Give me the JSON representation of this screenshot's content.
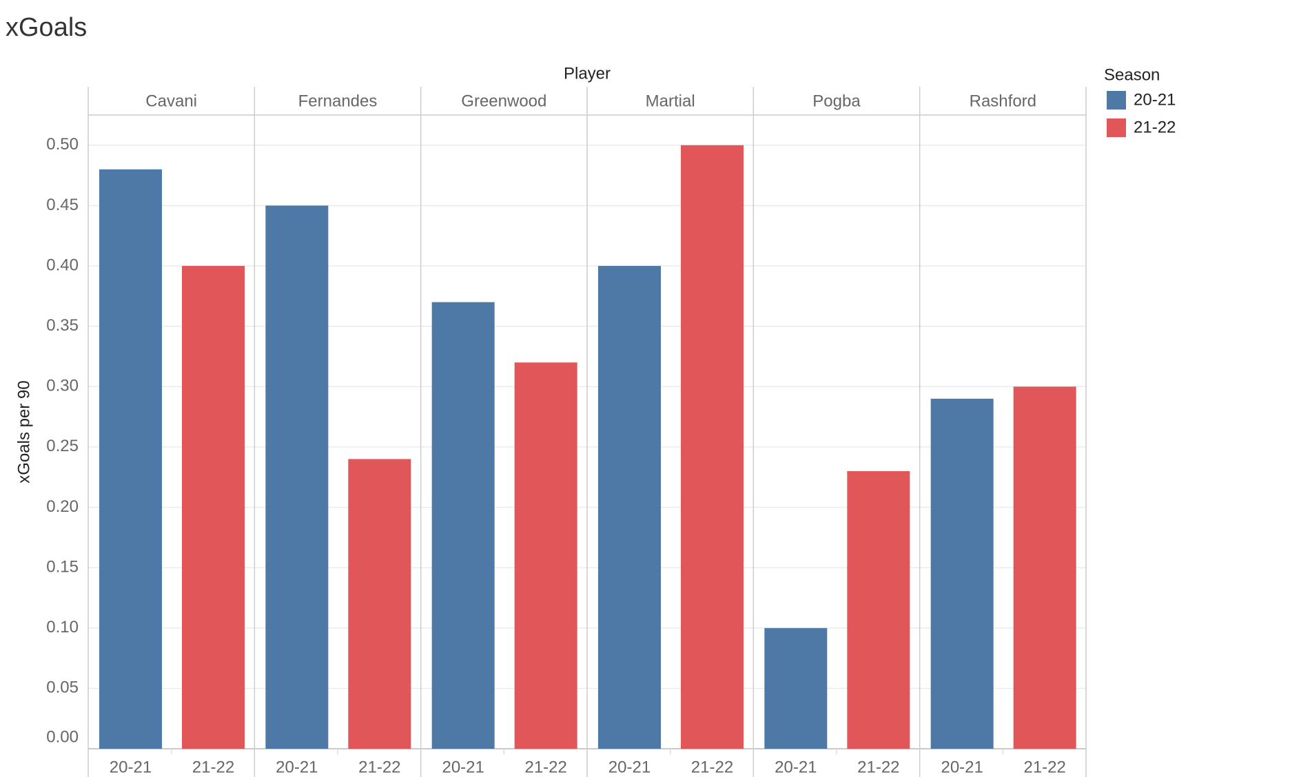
{
  "chart_data": {
    "type": "bar",
    "title": "xGoals",
    "x_label": "Player",
    "y_label": "xGoals per 90",
    "legend_title": "Season",
    "categories": [
      "Cavani",
      "Fernandes",
      "Greenwood",
      "Martial",
      "Pogba",
      "Rashford"
    ],
    "series": [
      {
        "name": "20-21",
        "color": "#4e79a7",
        "values": [
          0.48,
          0.45,
          0.37,
          0.4,
          0.1,
          0.29
        ]
      },
      {
        "name": "21-22",
        "color": "#e15759",
        "values": [
          0.4,
          0.24,
          0.32,
          0.5,
          0.23,
          0.3
        ]
      }
    ],
    "ylim": [
      0,
      0.525
    ],
    "yticks": [
      {
        "value": 0,
        "label": "0.00"
      },
      {
        "value": 0.05,
        "label": "0.05"
      },
      {
        "value": 0.1,
        "label": "0.10"
      },
      {
        "value": 0.15,
        "label": "0.15"
      },
      {
        "value": 0.2,
        "label": "0.20"
      },
      {
        "value": 0.25,
        "label": "0.25"
      },
      {
        "value": 0.3,
        "label": "0.30"
      },
      {
        "value": 0.35,
        "label": "0.35"
      },
      {
        "value": 0.4,
        "label": "0.40"
      },
      {
        "value": 0.45,
        "label": "0.45"
      },
      {
        "value": 0.5,
        "label": "0.50"
      }
    ],
    "grid": true,
    "legend": "right"
  }
}
